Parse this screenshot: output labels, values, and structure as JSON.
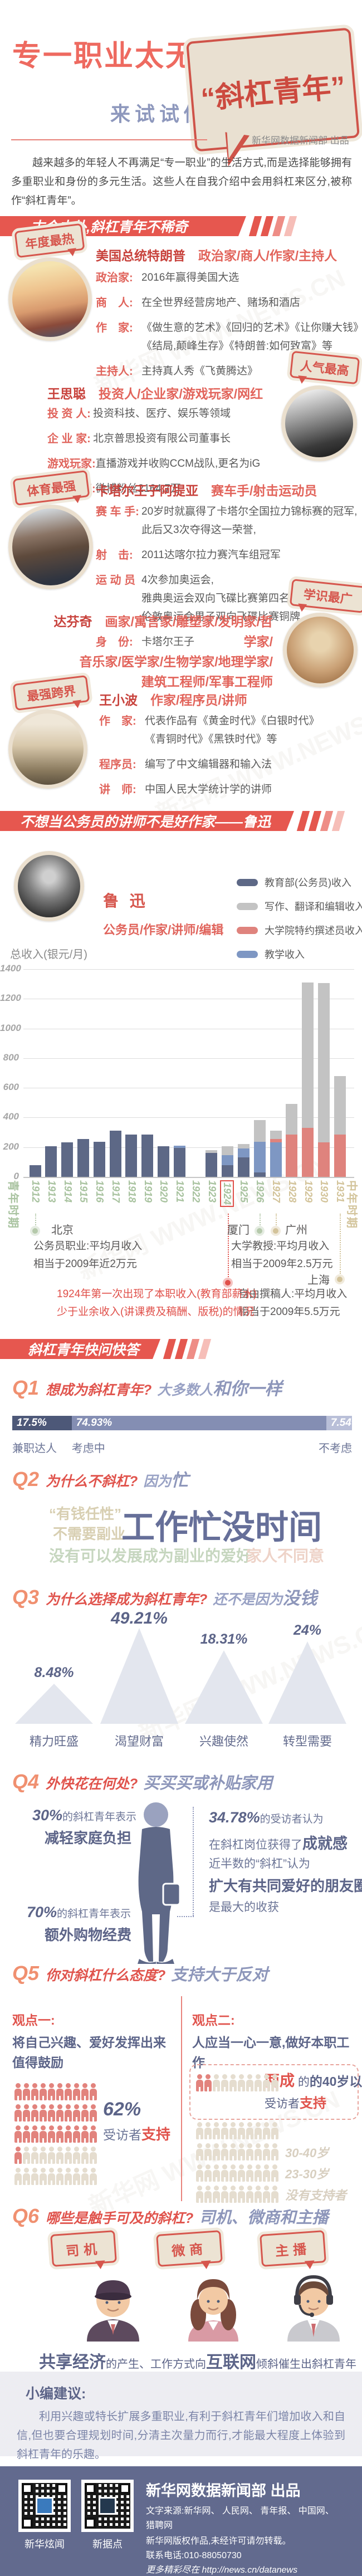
{
  "meta": {
    "watermark": "新华网 WWW.NEWS.CN"
  },
  "header": {
    "title": "专一职业太无趣?",
    "subtitle": "来试试做",
    "bubble": "“斜杠青年”",
    "producer": "新华网数据新闻部 出品",
    "intro": "越来越多的年轻人不再满足“专一职业”的生活方式,而是选择能够拥有多重职业和身份的多元生活。这些人在自我介绍中会用斜杠来区分,被称作“斜杠青年”。"
  },
  "banners": [
    "古今中外,斜杠青年不稀奇",
    "不想当公务员的讲师不是好作家——鲁迅",
    "斜杠青年快问快答"
  ],
  "profiles": [
    {
      "badge": "年度最热",
      "name": "美国总统特朗普",
      "slashes": "政治家/商人/作家/主持人",
      "rows": [
        {
          "label": "政治家:",
          "lines": [
            "2016年赢得美国大选"
          ]
        },
        {
          "label": "商　人:",
          "lines": [
            "在全世界经营房地产、赌场和酒店"
          ]
        },
        {
          "label": "作　家:",
          "lines": [
            "《做生意的艺术》《回归的艺术》《让你赚大钱》",
            "《结局,颠峰生存》《特朗普:如何致富》等"
          ]
        },
        {
          "label": "主持人:",
          "lines": [
            "主持真人秀《飞黄腾达》"
          ]
        }
      ]
    },
    {
      "badge": "人气最高",
      "name": "王思聪",
      "slashes": "投资人/企业家/游戏玩家/网红",
      "rows": [
        {
          "label": "投 资 人:",
          "lines": [
            "投资科技、医疗、娱乐等领域"
          ]
        },
        {
          "label": "企 业 家:",
          "lines": [
            "北京普思投资有限公司董事长"
          ]
        },
        {
          "label": "游戏玩家:",
          "lines": [
            "直播游戏并收购CCM战队,更名为iG"
          ]
        },
        {
          "label": "网　　红:",
          "lines": [
            "微博粉丝2164.7万"
          ]
        }
      ]
    },
    {
      "badge": "体育最强",
      "name": "卡塔尔王子阿提亚",
      "slashes": "赛车手/射击运动员",
      "rows": [
        {
          "label": "赛 车 手:",
          "lines": [
            "20岁时就赢得了卡塔尔全国拉力锦标赛的冠军,",
            "此后又3次夺得这一荣誉,"
          ]
        },
        {
          "label": "射　击:",
          "lines": [
            "2011达喀尔拉力赛汽车组冠军"
          ]
        },
        {
          "label": "运 动 员",
          "lines": [
            "4次参加奥运会,",
            "雅典奥运会双向飞碟比赛第四名,",
            "伦敦奥运会男子双向飞碟比赛铜牌"
          ]
        },
        {
          "label": "身　份:",
          "lines": [
            "卡塔尔王子"
          ]
        }
      ]
    },
    {
      "badge": "学识最广",
      "name": "达芬奇",
      "slash_lines": [
        "画家/寓言家/雕塑家/发明家/哲学家/",
        "音乐家/医学家/生物学家/地理学家/",
        "建筑工程师/军事工程师"
      ],
      "rows": []
    },
    {
      "badge": "最强跨界",
      "name": "王小波",
      "slashes": "作家/程序员/讲师",
      "rows": [
        {
          "label": "作　家:",
          "lines": [
            "代表作品有《黄金时代》《白银时代》",
            "《青铜时代》《黑铁时代》等"
          ]
        },
        {
          "label": "程序员:",
          "lines": [
            "编写了中文编辑器和输入法"
          ]
        },
        {
          "label": "讲　师:",
          "lines": [
            "中国人民大学统计学的讲师"
          ]
        }
      ]
    }
  ],
  "luxun": {
    "name": "鲁 迅",
    "slashes": "公务员/作家/讲师/编辑",
    "legend": [
      {
        "label": "教育部(公务员)收入",
        "color": "#5d6886"
      },
      {
        "label": "写作、翻译和编辑收入",
        "color": "#c3c3c3"
      },
      {
        "label": "大学院特约撰述员收入",
        "color": "#df837d"
      },
      {
        "label": "教学收入",
        "color": "#7e97c3"
      }
    ]
  },
  "chart_data": {
    "type": "bar",
    "stacked": true,
    "title": "总收入(银元/月)",
    "ylabel": "总收入(银元/月)",
    "ylim": [
      0,
      1400
    ],
    "ytick": 200,
    "grid": true,
    "categories": [
      "1912",
      "1913",
      "1914",
      "1915",
      "1916",
      "1917",
      "1918",
      "1919",
      "1920",
      "1921",
      "1922",
      "1923",
      "1924",
      "1925",
      "1926",
      "1927",
      "1928",
      "1929",
      "1930",
      "1931"
    ],
    "series": [
      {
        "name": "教育部(公务员)收入",
        "color": "#5d6886",
        "values": [
          78,
          205,
          232,
          254,
          235,
          313,
          284,
          284,
          205,
          196,
          0,
          160,
          78,
          130,
          30,
          0,
          0,
          0,
          0,
          0
        ]
      },
      {
        "name": "教学收入",
        "color": "#7e97c3",
        "values": [
          0,
          0,
          0,
          0,
          0,
          0,
          0,
          0,
          0,
          14,
          0,
          0,
          68,
          62,
          208,
          232,
          0,
          0,
          0,
          0
        ]
      },
      {
        "name": "大学院特约撰述员收入",
        "color": "#df837d",
        "values": [
          0,
          0,
          0,
          0,
          0,
          0,
          0,
          0,
          0,
          0,
          0,
          0,
          0,
          0,
          0,
          22,
          285,
          330,
          232,
          285
        ]
      },
      {
        "name": "写作、翻译和编辑收入",
        "color": "#c3c3c3",
        "values": [
          0,
          0,
          0,
          0,
          0,
          0,
          0,
          0,
          0,
          0,
          0,
          20,
          62,
          30,
          145,
          58,
          205,
          980,
          1075,
          395
        ]
      }
    ],
    "highlight_year": "1924",
    "period_left": "青年时期",
    "period_right": "中年时期",
    "annotations": {
      "beijing": {
        "city": "北京",
        "lines": [
          "公务员职业:平均月收入",
          "相当于2009年近2万元"
        ]
      },
      "xiamen": {
        "city": "厦门"
      },
      "guangzhou": {
        "city": "广州",
        "lines": [
          "大学教授:平均月收入",
          "相当于2009年2.5万元"
        ]
      },
      "shanghai": {
        "city": "上海",
        "lines": [
          "自由撰稿人:平均月收入",
          "相当于2009年5.5万元"
        ]
      },
      "note1924": [
        "1924年第一次出现了本职收入(教育部薪水)",
        "少于业余收入(讲课费及稿酬、版税)的情况"
      ]
    }
  },
  "qa": {
    "q1": {
      "no": "Q1",
      "question": "想成为斜杠青年?",
      "answer_pre": "大多数人",
      "answer_bold": "和你一样",
      "segments": [
        {
          "value": "17.5%",
          "label": "兼职达人",
          "pct": 17.5,
          "color": "#4d5878"
        },
        {
          "value": "74.93%",
          "label": "考虑中",
          "pct": 74.93,
          "color": "#848eb3"
        },
        {
          "value": "7.54%",
          "label": "不考虑",
          "pct": 7.54,
          "color": "#b9bfd8"
        }
      ]
    },
    "q2": {
      "no": "Q2",
      "question": "为什么不斜杠?",
      "answer_pre": "因为",
      "answer_bold": "忙",
      "cloud": [
        {
          "text": "“有钱任性”"
        },
        {
          "text": "不需要副业"
        },
        {
          "text": "工作忙没时间"
        },
        {
          "text": "没有可以发展成为副业的爱好"
        },
        {
          "text": "家人不同意"
        }
      ]
    },
    "q3": {
      "no": "Q3",
      "question": "为什么选择成为斜杠青年?",
      "answer_pre": "还不是因为",
      "answer_bold": "没钱",
      "peaks": [
        {
          "label": "精力旺盛",
          "display": "8.48%",
          "value": 8.48
        },
        {
          "label": "渴望财富",
          "display": "49.21%",
          "value": 49.21
        },
        {
          "label": "兴趣使然",
          "display": "18.31%",
          "value": 18.31
        },
        {
          "label": "转型需要",
          "display": "24%",
          "value": 24
        }
      ]
    },
    "q4": {
      "no": "Q4",
      "question": "外快花在何处?",
      "answer": "买买买或补贴家用",
      "left1_pct": "30%",
      "left1_rest": "的斜杠青年表示",
      "left1_bold": "减轻家庭负担",
      "left2_pct": "70%",
      "left2_rest": "的斜杠青年表示",
      "left2_bold": "额外购物经费",
      "right1_pct": "34.78%",
      "right1_rest": "的受访者认为",
      "right2_pre": "在斜杠岗位获得了",
      "right2_bold": "成就感",
      "right3": "近半数的“斜杠”认为",
      "right4": "扩大有共同爱好的朋友圈",
      "right5": "是最大的收获"
    },
    "q5": {
      "no": "Q5",
      "question": "你对斜杠什么态度?",
      "answer": "支持大于反对",
      "view1": {
        "title": "观点一:",
        "statement": "将自己兴趣、爱好发挥出来值得鼓励",
        "pct": "62%",
        "sup_pre": "受访者",
        "sup_bold": "支持",
        "rows": 5,
        "per_row": 10,
        "red_count": 31
      },
      "view2": {
        "title": "观点二:",
        "statement": "人应当一心一意,做好本职工作",
        "box_bold": "两成",
        "box_rest": "的40岁以上",
        "line2_pre": "受访者",
        "line2_bold": "支持",
        "red_count": 2,
        "per_row": 10,
        "rows": 5,
        "age_labels": [
          "30-40岁",
          "23-30岁",
          "没有支持者"
        ]
      }
    },
    "q6": {
      "no": "Q6",
      "question": "哪些是触手可及的斜杠?",
      "answer": "司机、微商和主播",
      "roles": [
        "司机",
        "微商",
        "主播"
      ],
      "caption": [
        {
          "t": "共享经济",
          "big": true
        },
        {
          "t": "的产生、工作方式向",
          "big": false
        },
        {
          "t": "互联网",
          "big": true
        },
        {
          "t": "倾斜催生出斜杠青年",
          "big": false
        }
      ]
    }
  },
  "suggestion": {
    "title": "小编建议:",
    "text": "利用兴趣或特长扩展多重职业,有利于斜杠青年们增加收入和自信,但也要合理规划时间,分清主次量力而行,才能最大程度上体验到斜杠青年的乐趣。"
  },
  "footer": {
    "qr_labels": [
      "新华炫闻",
      "新据点"
    ],
    "produced": "新华网数据新闻部 出品",
    "lines": [
      "文字来源:新华网、 人民网、 青年报、 中国网、",
      "猎聘网",
      "新华网版权作品,未经许可请勿转载。",
      "联系电话:010-88050730",
      "更多精彩尽在 http://news.cn/datanews"
    ]
  }
}
